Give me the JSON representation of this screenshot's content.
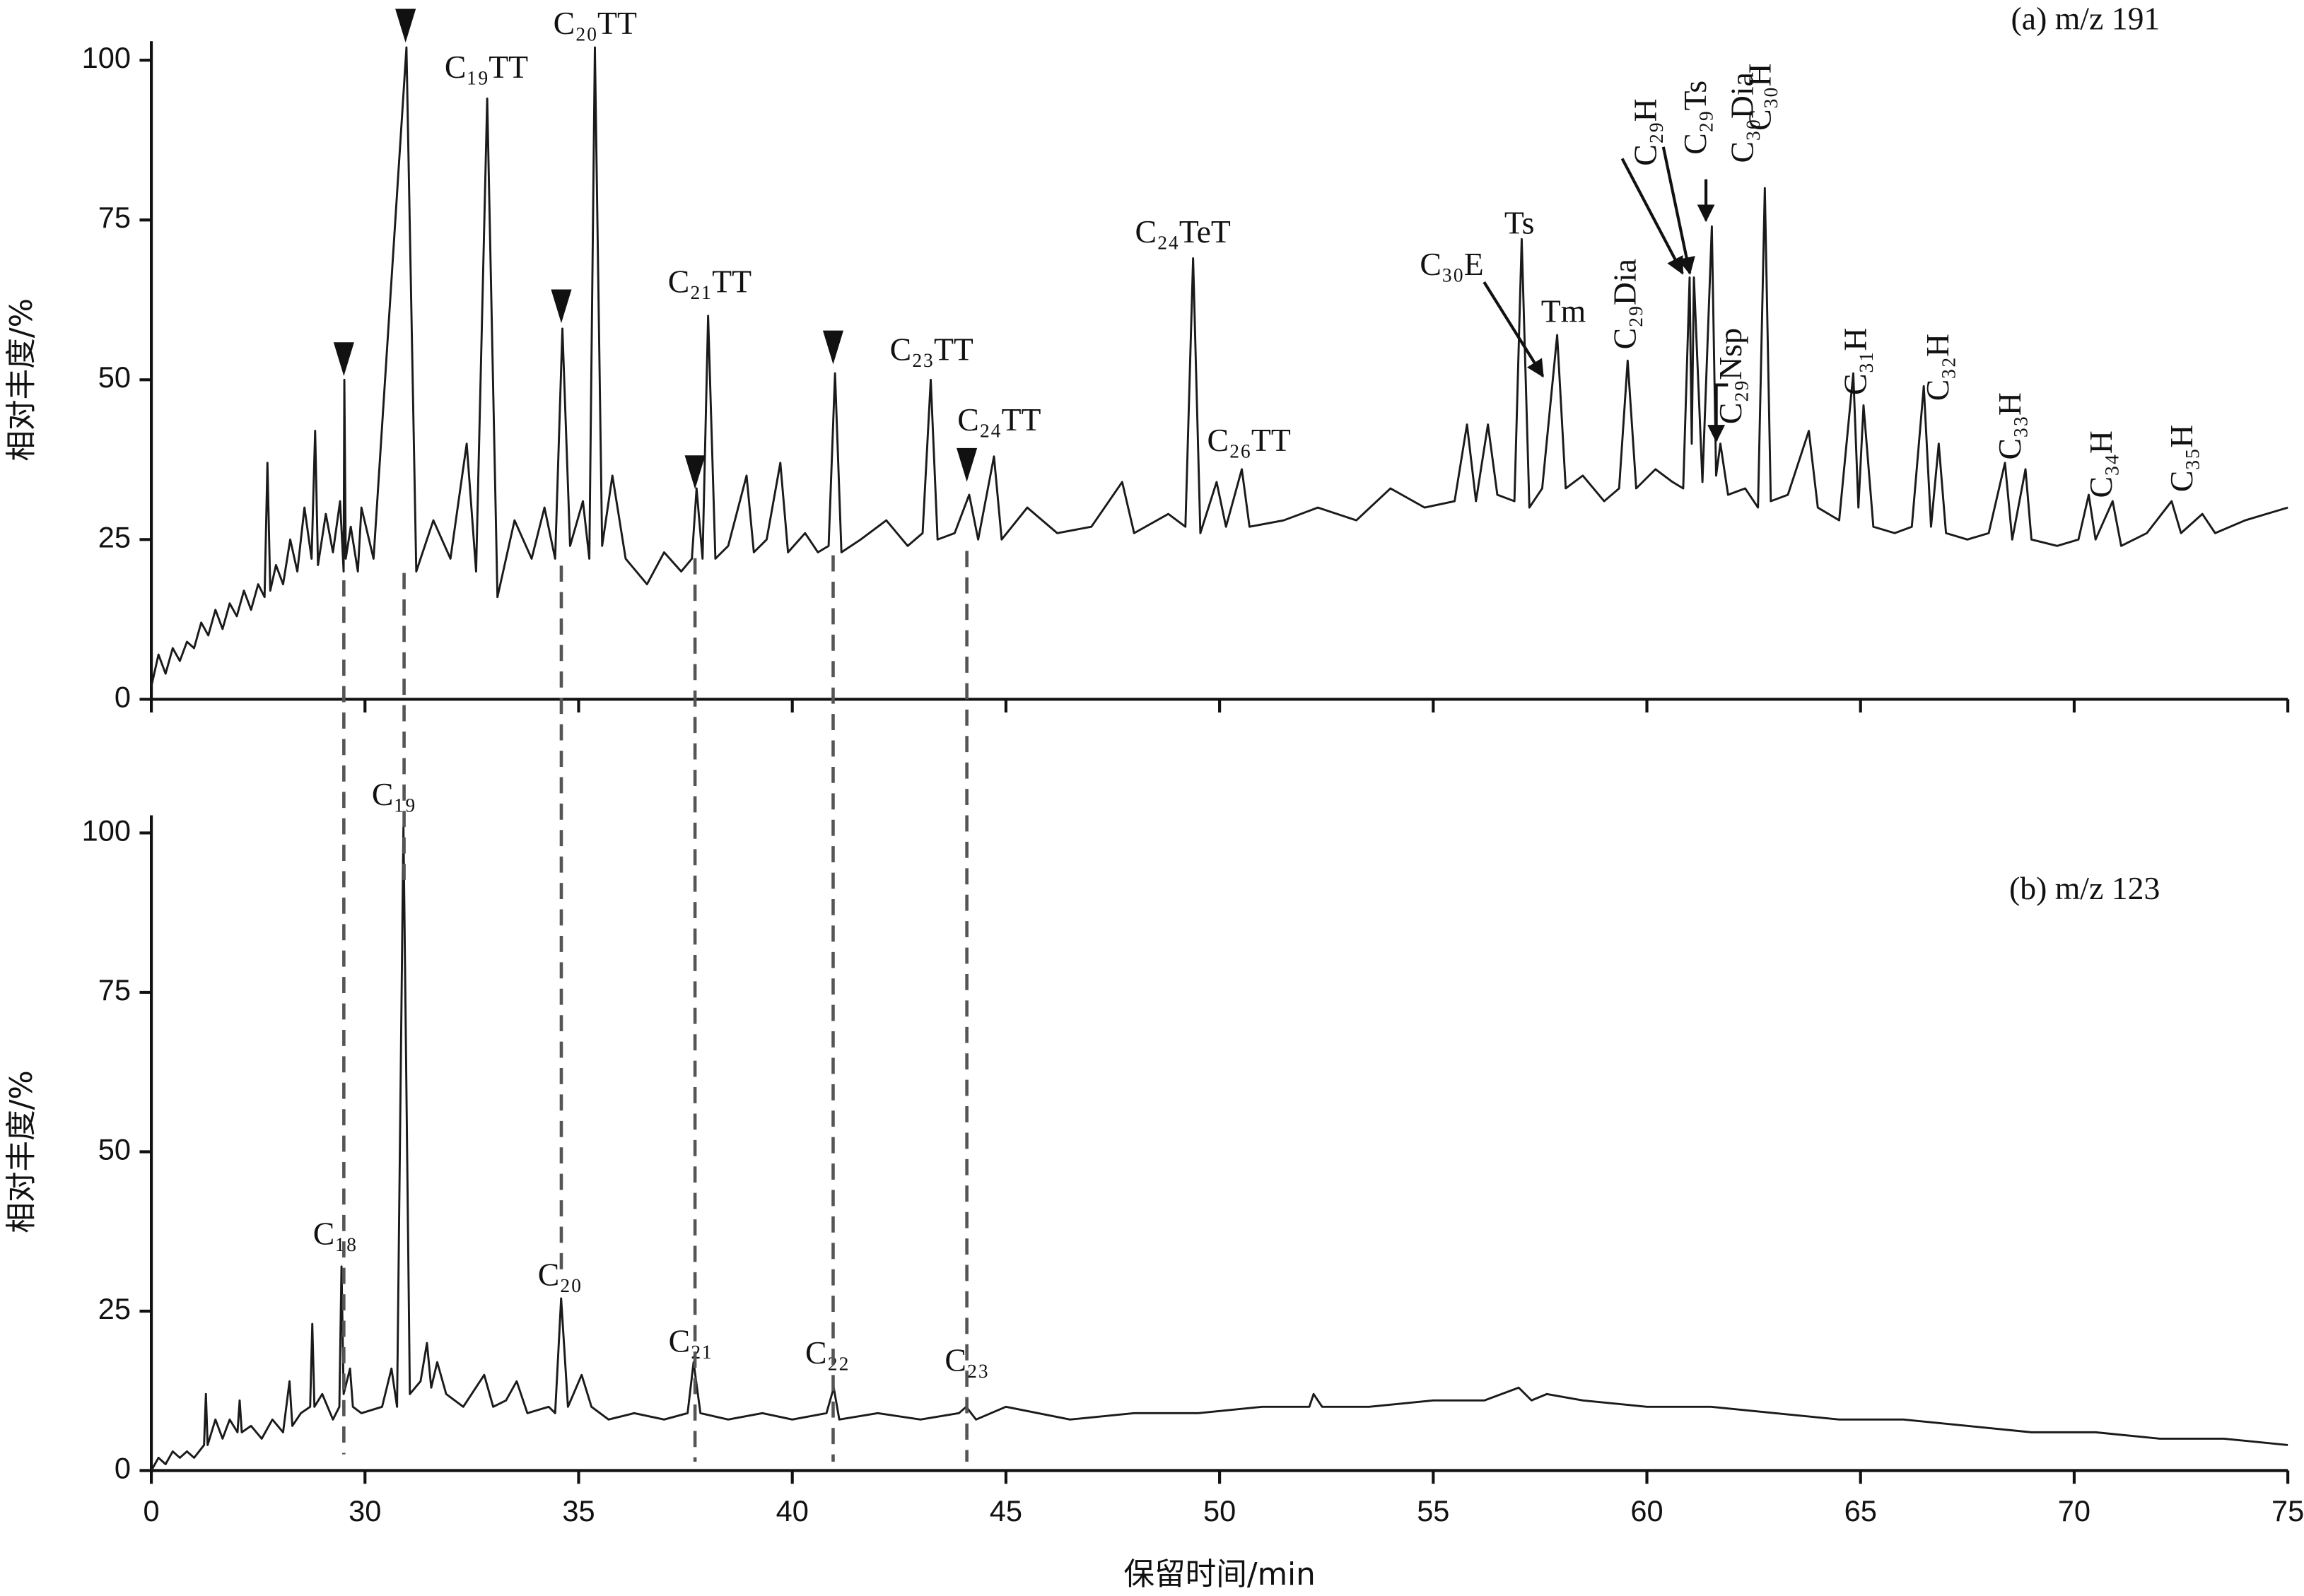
{
  "chart_data": [
    {
      "type": "line",
      "title": "(a) m/z 191",
      "y_label": "相对丰度/%",
      "color": "#1a1a1a",
      "xlim": [
        0,
        75
      ],
      "xticks": [
        0,
        30,
        35,
        40,
        45,
        50,
        55,
        60,
        65,
        70,
        75
      ],
      "ylim": [
        0,
        100
      ],
      "yticks": [
        0,
        25,
        50,
        75,
        100
      ],
      "annotations": [
        "C₁₉TT",
        "C₂₀TT",
        "C₂₁TT",
        "C₂₃TT",
        "C₂₄TT",
        "C₂₄TeT",
        "C₂₆TT",
        "C₃₀E",
        "Ts",
        "Tm",
        "C₂₉Dia",
        "C₂₉H",
        "C₂₉Ts",
        "C₃₀Dia",
        "C₂₉Nsp",
        "C₃₀H",
        "C₃₁H",
        "C₃₂H",
        "C₃₃H",
        "C₃₄H",
        "C₃₅H"
      ],
      "x": [
        0,
        1,
        2,
        3,
        4,
        5,
        6,
        7,
        8,
        9,
        10,
        11,
        12,
        13,
        14,
        15,
        15.9,
        16.3,
        16.7,
        17.5,
        18.5,
        19.5,
        20.5,
        21.5,
        22.5,
        23,
        23.4,
        24.5,
        25.5,
        26.5,
        27,
        27.1,
        27.3,
        28,
        29,
        29.5,
        30.2,
        30.97,
        31.2,
        31.6,
        32,
        32.38,
        32.6,
        32.86,
        33.1,
        33.5,
        33.9,
        34.2,
        34.45,
        34.62,
        34.8,
        35.1,
        35.25,
        35.38,
        35.55,
        35.79,
        36.1,
        36.6,
        37,
        37.4,
        37.65,
        37.76,
        37.9,
        38.03,
        38.2,
        38.5,
        38.93,
        39.1,
        39.4,
        39.72,
        39.9,
        40.3,
        40.6,
        40.85,
        41,
        41.15,
        41.6,
        42.2,
        42.7,
        43.05,
        43.24,
        43.4,
        43.8,
        44.14,
        44.35,
        44.72,
        44.9,
        45.5,
        46.2,
        47,
        47.72,
        48,
        48.8,
        49.2,
        49.38,
        49.55,
        49.93,
        50.15,
        50.52,
        50.7,
        51.5,
        52.3,
        53.2,
        54,
        54.8,
        55.5,
        55.79,
        56,
        56.28,
        56.5,
        56.9,
        57.07,
        57.25,
        57.55,
        57.9,
        58.1,
        58.5,
        59,
        59.35,
        59.55,
        59.75,
        60.2,
        60.6,
        60.85,
        61,
        61.05,
        61.1,
        61.3,
        61.52,
        61.62,
        61.72,
        61.9,
        62.3,
        62.6,
        62.76,
        62.9,
        63.3,
        63.79,
        64,
        64.5,
        64.83,
        64.95,
        65.07,
        65.3,
        65.8,
        66.2,
        66.48,
        66.65,
        66.83,
        67,
        67.5,
        68,
        68.38,
        68.55,
        68.86,
        69,
        69.6,
        70.1,
        70.34,
        70.5,
        70.9,
        71.1,
        71.7,
        72.28,
        72.5,
        73,
        73.3,
        74,
        74.5,
        75
      ],
      "values": [
        2,
        7,
        4,
        8,
        6,
        9,
        8,
        12,
        10,
        14,
        11,
        15,
        13,
        17,
        14,
        18,
        16,
        37,
        17,
        21,
        18,
        25,
        20,
        30,
        22,
        42,
        21,
        29,
        23,
        31,
        20,
        50,
        22,
        27,
        20,
        30,
        22,
        102,
        20,
        28,
        22,
        40,
        20,
        94,
        16,
        28,
        22,
        30,
        22,
        58,
        24,
        31,
        22,
        102,
        24,
        35,
        22,
        18,
        23,
        20,
        22,
        33,
        22,
        60,
        22,
        24,
        35,
        23,
        25,
        37,
        23,
        26,
        23,
        24,
        51,
        23,
        25,
        28,
        24,
        26,
        50,
        25,
        26,
        32,
        25,
        38,
        25,
        30,
        26,
        27,
        34,
        26,
        29,
        27,
        69,
        26,
        34,
        27,
        36,
        27,
        28,
        30,
        28,
        33,
        30,
        31,
        43,
        31,
        43,
        32,
        31,
        72,
        30,
        33,
        57,
        33,
        35,
        31,
        33,
        53,
        33,
        36,
        34,
        33,
        66,
        40,
        66,
        34,
        74,
        35,
        40,
        32,
        33,
        30,
        80,
        31,
        32,
        42,
        30,
        28,
        51,
        30,
        46,
        27,
        26,
        27,
        49,
        27,
        40,
        26,
        25,
        26,
        37,
        25,
        36,
        25,
        24,
        25,
        32,
        25,
        31,
        24,
        26,
        31,
        26,
        29,
        26,
        28,
        29,
        30
      ]
    },
    {
      "type": "line",
      "title": "(b) m/z 123",
      "y_label": "相对丰度/%",
      "x_label": "保留时间/min",
      "color": "#1a1a1a",
      "xlim": [
        0,
        75
      ],
      "xticks": [
        0,
        30,
        35,
        40,
        45,
        50,
        55,
        60,
        65,
        70,
        75
      ],
      "ylim": [
        0,
        100
      ],
      "yticks": [
        0,
        25,
        50,
        75,
        100
      ],
      "annotations": [
        "C₁₉",
        "C₁₈",
        "C₂₀",
        "C₂₁",
        "C₂₂",
        "C₂₃"
      ],
      "x": [
        0,
        1,
        2,
        3,
        4,
        5,
        6,
        7.4,
        7.66,
        7.9,
        9,
        10,
        11,
        12.1,
        12.4,
        12.7,
        14,
        15.5,
        17,
        18.5,
        19.4,
        19.8,
        21,
        22.3,
        22.6,
        22.9,
        24,
        25.5,
        26.4,
        26.7,
        27,
        27.9,
        28.3,
        29.5,
        30.4,
        30.62,
        30.75,
        30.9,
        31.05,
        31.3,
        31.45,
        31.55,
        31.69,
        31.9,
        32.3,
        32.79,
        33,
        33.3,
        33.55,
        33.8,
        34.3,
        34.45,
        34.59,
        34.75,
        35.07,
        35.3,
        35.7,
        36.3,
        37,
        37.55,
        37.69,
        37.85,
        38.5,
        39.3,
        40,
        40.8,
        40.97,
        41.1,
        42,
        43,
        43.9,
        44.07,
        44.3,
        45,
        46.5,
        48,
        49.5,
        51,
        52.1,
        52.2,
        52.4,
        53.5,
        55,
        56.2,
        57,
        57.3,
        57.66,
        58.5,
        60,
        61.5,
        63,
        64.5,
        66,
        67.5,
        69,
        70.5,
        72,
        73.5,
        75
      ],
      "values": [
        0,
        2,
        1,
        3,
        2,
        3,
        2,
        4,
        12,
        4,
        8,
        5,
        8,
        6,
        11,
        6,
        7,
        5,
        8,
        6,
        14,
        7,
        9,
        10,
        23,
        10,
        12,
        8,
        10,
        32,
        12,
        16,
        10,
        9,
        10,
        16,
        10,
        101,
        12,
        14,
        20,
        13,
        17,
        12,
        10,
        15,
        10,
        11,
        14,
        9,
        10,
        9,
        27,
        10,
        15,
        10,
        8,
        9,
        8,
        9,
        17,
        9,
        8,
        9,
        8,
        9,
        13,
        8,
        9,
        8,
        9,
        10,
        8,
        10,
        8,
        9,
        9,
        10,
        10,
        12,
        10,
        10,
        11,
        11,
        13,
        11,
        12,
        11,
        10,
        10,
        9,
        8,
        8,
        7,
        6,
        6,
        5,
        5,
        4
      ]
    }
  ]
}
